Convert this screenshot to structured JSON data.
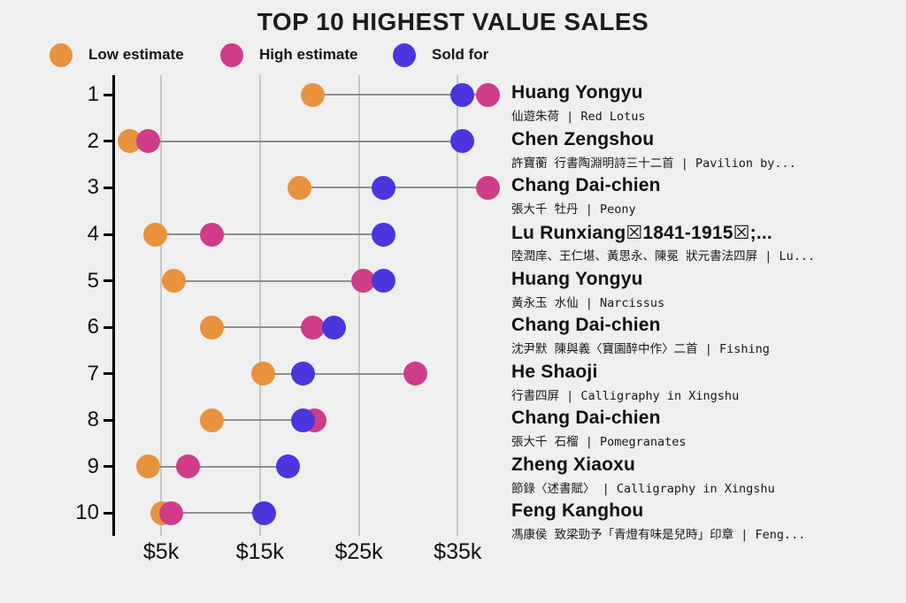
{
  "title": "TOP 10 HIGHEST VALUE SALES",
  "legend": [
    {
      "label": "Low estimate",
      "series": "low",
      "color": "#e8923e"
    },
    {
      "label": "High estimate",
      "series": "high",
      "color": "#cf3c87"
    },
    {
      "label": "Sold for",
      "series": "sold",
      "color": "#4b35dc"
    }
  ],
  "colors": {
    "background": "#efefef",
    "low": "#e8923e",
    "high": "#cf3c87",
    "sold": "#4b35dc",
    "gridline": "#c6c6c6",
    "connector": "#8e8e8e",
    "axis": "#000000"
  },
  "chart_data": {
    "type": "scatter",
    "subtype": "horizontal-dumbbell-dot-plot",
    "title": "TOP 10 HIGHEST VALUE SALES",
    "unit": "USD thousands (values read from chart)",
    "x_axis": {
      "tick_labels": [
        "$5k",
        "$15k",
        "$25k",
        "$35k"
      ],
      "tick_values_k": [
        5,
        15,
        25,
        35
      ],
      "range_k": [
        0,
        40
      ],
      "grid": true
    },
    "y_axis": {
      "tick_labels": [
        "1",
        "2",
        "3",
        "4",
        "5",
        "6",
        "7",
        "8",
        "9",
        "10"
      ]
    },
    "series_names": [
      "Low estimate",
      "High estimate",
      "Sold for"
    ],
    "rows": [
      {
        "rank": 1,
        "artist": "Huang Yongyu",
        "work": "仙遊朱荷 | Red Lotus",
        "low_k": 20.3,
        "high_k": 38.1,
        "sold_k": 35.5
      },
      {
        "rank": 2,
        "artist": "Chen Zengshou",
        "work": "許寶蘅 行書陶淵明詩三十二首 | Pavilion by...",
        "low_k": 1.8,
        "high_k": 3.7,
        "sold_k": 35.5
      },
      {
        "rank": 3,
        "artist": "Chang Dai-chien",
        "work": "張大千 牡丹 | Peony",
        "low_k": 19.0,
        "high_k": 38.1,
        "sold_k": 27.5
      },
      {
        "rank": 4,
        "artist": "Lu Runxiang☒1841-1915☒;...",
        "work": "陸潤庠、王仁堪、黃思永、陳冕 狀元書法四屏 | Lu...",
        "low_k": 4.4,
        "high_k": 10.1,
        "sold_k": 27.5
      },
      {
        "rank": 5,
        "artist": "Huang Yongyu",
        "work": "黃永玉 水仙 | Narcissus",
        "low_k": 6.3,
        "high_k": 25.4,
        "sold_k": 27.5
      },
      {
        "rank": 6,
        "artist": "Chang Dai-chien",
        "work": "沈尹默 陳與義〈寶園醉中作〉二首 | Fishing",
        "low_k": 10.1,
        "high_k": 20.3,
        "sold_k": 22.5
      },
      {
        "rank": 7,
        "artist": "He Shaoji",
        "work": "行書四屏 | Calligraphy in Xingshu",
        "low_k": 15.3,
        "high_k": 30.7,
        "sold_k": 19.4
      },
      {
        "rank": 8,
        "artist": "Chang Dai-chien",
        "work": "張大千 石榴 | Pomegranates",
        "low_k": 10.1,
        "high_k": 20.5,
        "sold_k": 19.4
      },
      {
        "rank": 9,
        "artist": "Zheng Xiaoxu",
        "work": "節錄〈述書賦〉 | Calligraphy in Xingshu",
        "low_k": 3.7,
        "high_k": 7.7,
        "sold_k": 17.8
      },
      {
        "rank": 10,
        "artist": "Feng Kanghou",
        "work": "馮康侯 致梁勁予「青燈有味是兒時」印章 | Feng...",
        "low_k": 5.1,
        "high_k": 6.0,
        "sold_k": 15.4
      }
    ]
  }
}
